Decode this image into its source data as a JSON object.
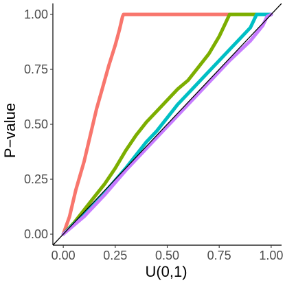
{
  "chart_data": {
    "type": "line",
    "title": "",
    "xlabel": "U(0,1)",
    "ylabel": "P−value",
    "xlim": [
      -0.05,
      1.05
    ],
    "ylim": [
      -0.05,
      1.05
    ],
    "x_ticks": [
      0.0,
      0.25,
      0.5,
      0.75,
      1.0
    ],
    "x_tick_labels": [
      "0.00",
      "0.25",
      "0.50",
      "0.75",
      "1.00"
    ],
    "y_ticks": [
      0.0,
      0.25,
      0.5,
      0.75,
      1.0
    ],
    "y_tick_labels": [
      "0.00",
      "0.25",
      "0.50",
      "0.75",
      "1.00"
    ],
    "grid": false,
    "legend": "none",
    "reference_line": {
      "x": [
        -0.05,
        1.05
      ],
      "y": [
        -0.05,
        1.05
      ],
      "color": "#000000"
    },
    "series": [
      {
        "color": "#F8766D",
        "x": [
          0.0,
          0.03,
          0.06,
          0.1,
          0.13,
          0.16,
          0.19,
          0.22,
          0.25,
          0.27,
          0.28,
          0.285,
          0.29,
          0.3,
          0.5,
          0.75,
          1.0
        ],
        "y": [
          0.0,
          0.08,
          0.2,
          0.33,
          0.45,
          0.57,
          0.67,
          0.77,
          0.86,
          0.93,
          0.97,
          0.99,
          1.0,
          1.0,
          1.0,
          1.0,
          1.0
        ]
      },
      {
        "color": "#7CAE00",
        "x": [
          0.0,
          0.05,
          0.1,
          0.15,
          0.2,
          0.25,
          0.3,
          0.35,
          0.4,
          0.45,
          0.5,
          0.55,
          0.6,
          0.65,
          0.7,
          0.75,
          0.78,
          0.8,
          0.85,
          0.9,
          0.95,
          1.0
        ],
        "y": [
          0.0,
          0.05,
          0.11,
          0.17,
          0.23,
          0.3,
          0.38,
          0.45,
          0.51,
          0.56,
          0.61,
          0.66,
          0.7,
          0.76,
          0.82,
          0.9,
          0.96,
          1.0,
          1.0,
          1.0,
          1.0,
          1.0
        ]
      },
      {
        "color": "#00BFC4",
        "x": [
          0.0,
          0.1,
          0.2,
          0.3,
          0.35,
          0.4,
          0.45,
          0.5,
          0.55,
          0.6,
          0.65,
          0.7,
          0.75,
          0.8,
          0.85,
          0.9,
          0.93,
          0.95,
          1.0
        ],
        "y": [
          0.0,
          0.09,
          0.19,
          0.3,
          0.36,
          0.42,
          0.47,
          0.53,
          0.59,
          0.64,
          0.69,
          0.74,
          0.79,
          0.84,
          0.89,
          0.94,
          1.0,
          1.0,
          1.0
        ]
      },
      {
        "color": "#C77CFF",
        "x": [
          0.0,
          0.1,
          0.2,
          0.3,
          0.4,
          0.5,
          0.6,
          0.7,
          0.8,
          0.9,
          0.96,
          0.98,
          1.0
        ],
        "y": [
          0.0,
          0.08,
          0.18,
          0.29,
          0.39,
          0.49,
          0.59,
          0.69,
          0.79,
          0.88,
          0.95,
          0.99,
          1.0
        ]
      }
    ]
  }
}
